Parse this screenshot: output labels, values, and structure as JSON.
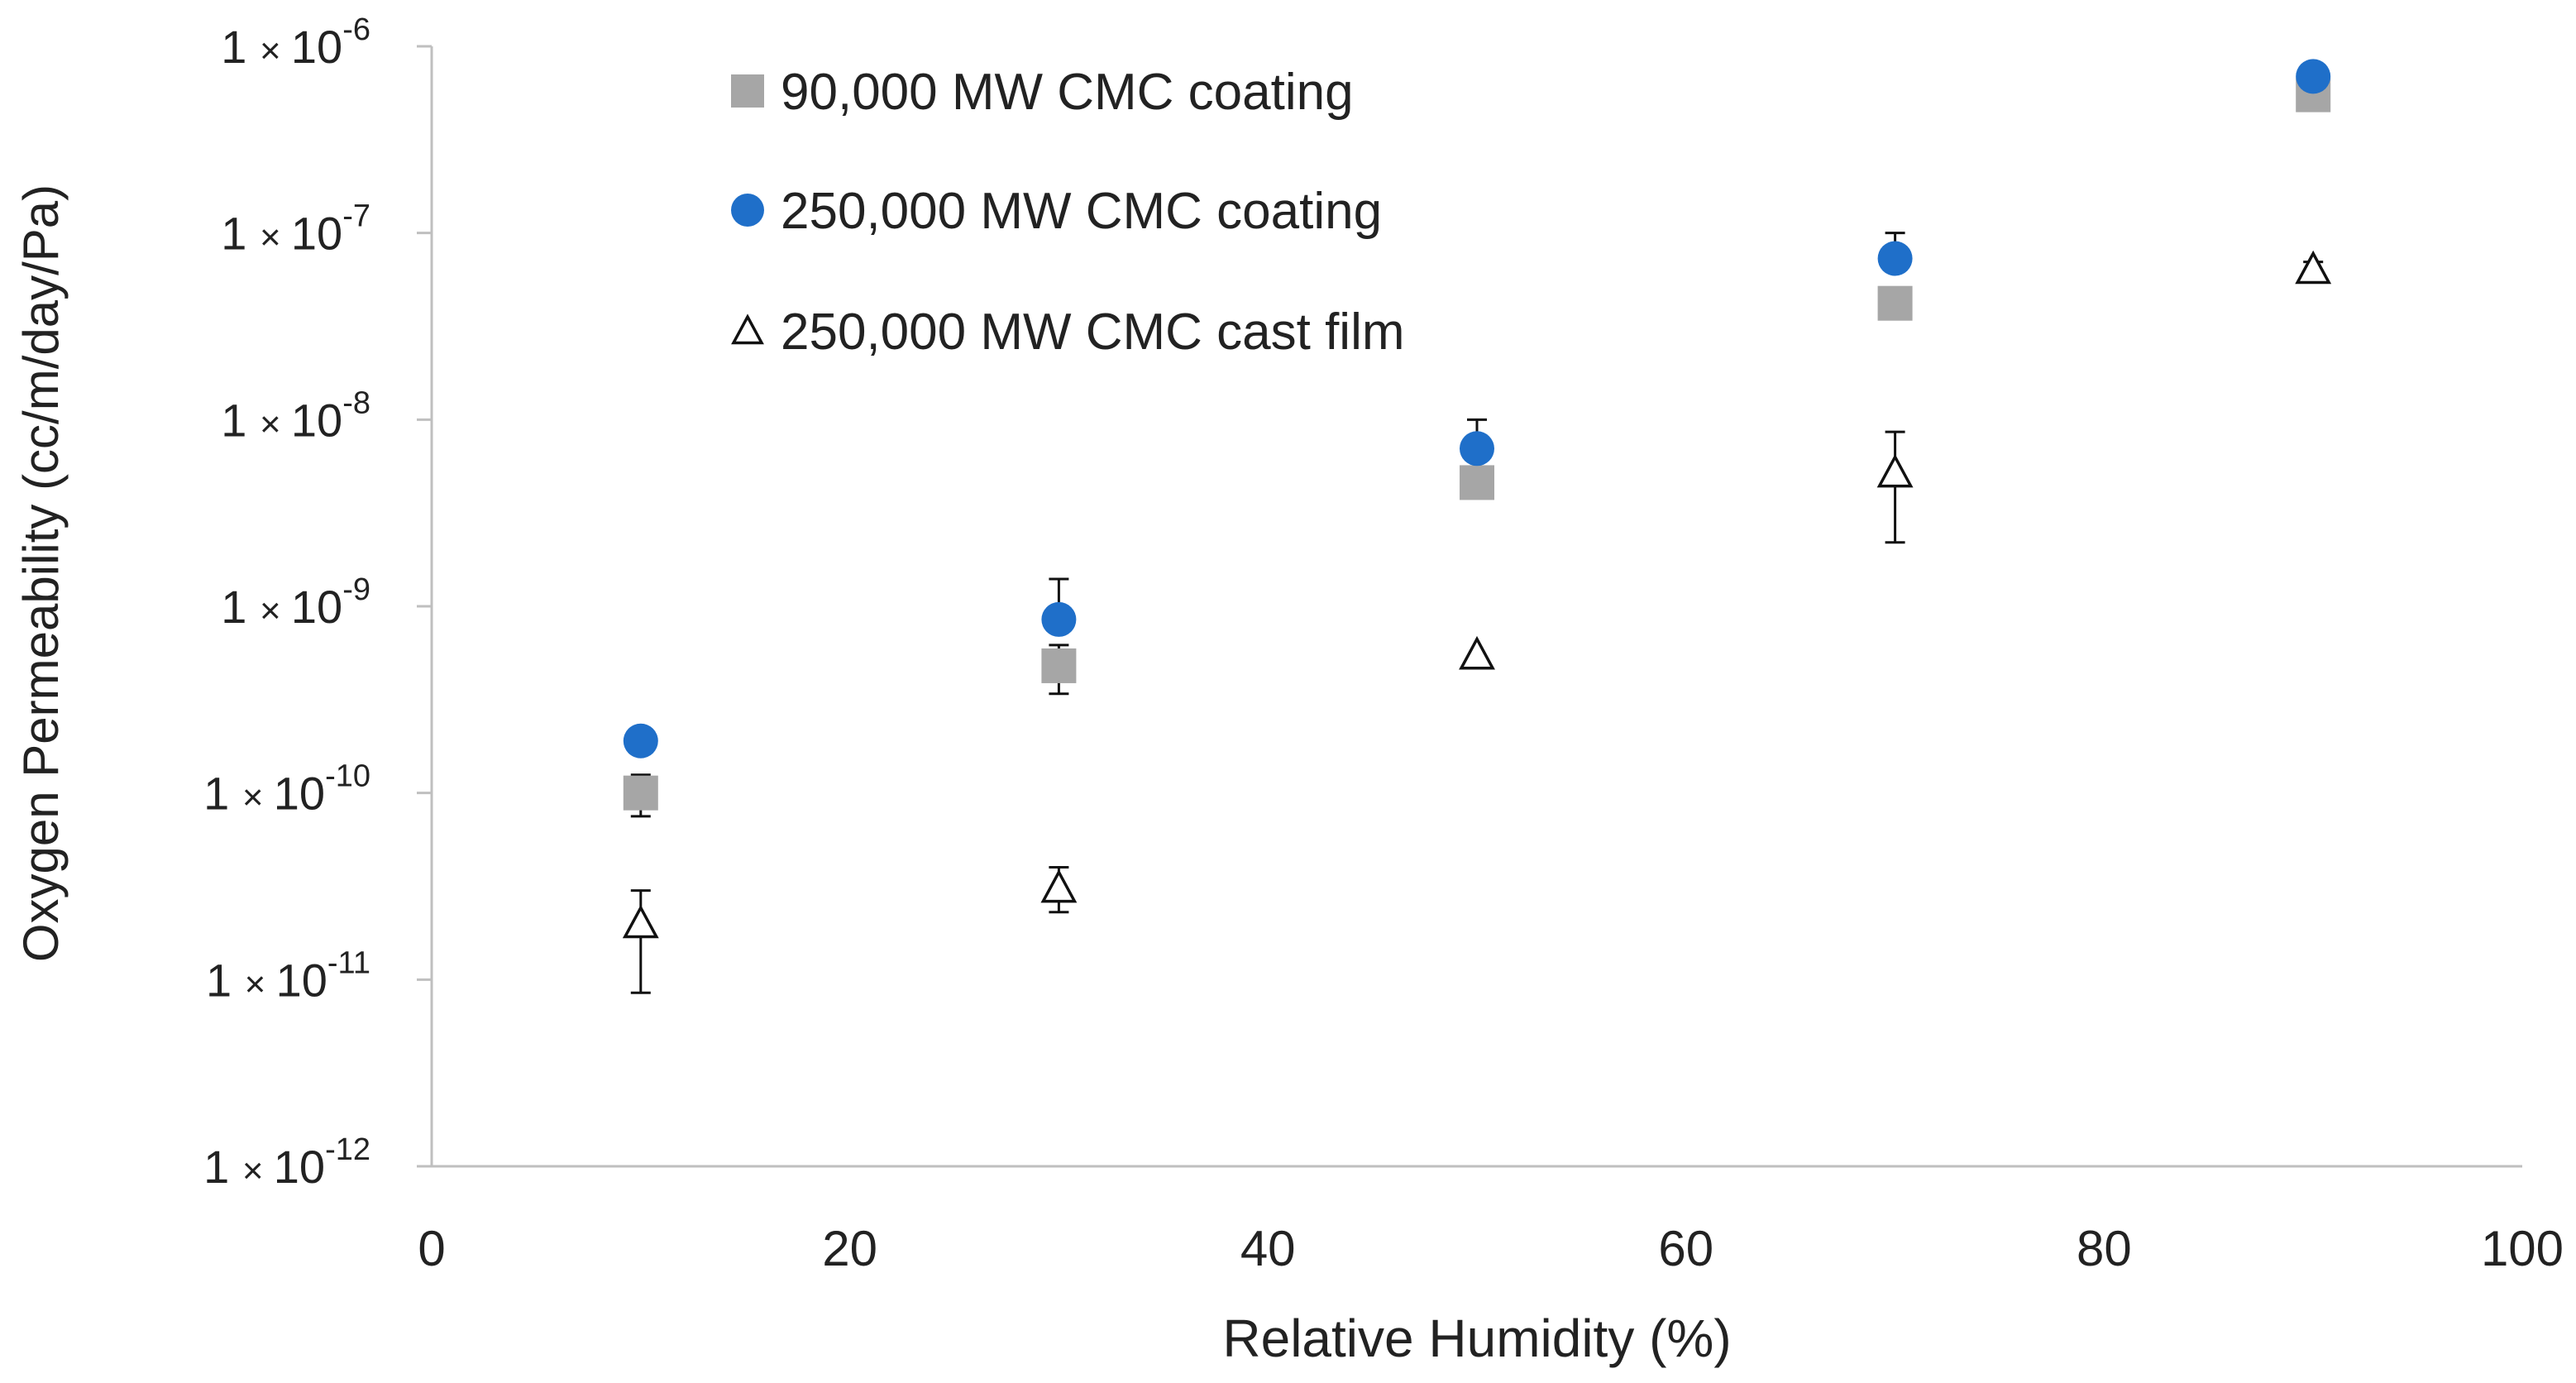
{
  "chart_data": {
    "type": "scatter",
    "title": "",
    "xlabel": "Relative Humidity (%)",
    "ylabel": "Oxygen Permeability (cc/m/day/Pa)",
    "xlim": [
      0,
      100
    ],
    "ylim": [
      1e-12,
      1e-06
    ],
    "yscale": "log",
    "grid": false,
    "legend_position": "top-left",
    "x_ticks": [
      0,
      20,
      40,
      60,
      80,
      100
    ],
    "x_tick_labels": [
      "0",
      "20",
      "40",
      "60",
      "80",
      "100"
    ],
    "y_ticks": [
      {
        "mantissa": "1",
        "op": "×",
        "base": "10",
        "exp": "-6"
      },
      {
        "mantissa": "1",
        "op": "×",
        "base": "10",
        "exp": "-7"
      },
      {
        "mantissa": "1",
        "op": "×",
        "base": "10",
        "exp": "-8"
      },
      {
        "mantissa": "1",
        "op": "×",
        "base": "10",
        "exp": "-9"
      },
      {
        "mantissa": "1",
        "op": "×",
        "base": "10",
        "exp": "-10"
      },
      {
        "mantissa": "1",
        "op": "×",
        "base": "10",
        "exp": "-11"
      },
      {
        "mantissa": "1",
        "op": "×",
        "base": "10",
        "exp": "-12"
      }
    ],
    "series": [
      {
        "name": "90,000 MW CMC coating",
        "marker": "square",
        "color": "#a6a6a6",
        "x": [
          10,
          30,
          50,
          70,
          90
        ],
        "y": [
          1e-10,
          4.8e-10,
          4.6e-09,
          4.2e-08,
          5.5e-07
        ],
        "err_low": [
          7.5e-11,
          3.4e-10,
          null,
          null,
          null
        ],
        "err_high": [
          1.25e-10,
          6.2e-10,
          null,
          null,
          null
        ]
      },
      {
        "name": "250,000 MW CMC coating",
        "marker": "circle",
        "color": "#1f6fc9",
        "x": [
          10,
          30,
          50,
          70,
          90
        ],
        "y": [
          1.9e-10,
          8.5e-10,
          7e-09,
          7.3e-08,
          6.9e-07
        ],
        "err_low": [
          null,
          null,
          null,
          null,
          null
        ],
        "err_high": [
          null,
          1.4e-09,
          1e-08,
          1e-07,
          null
        ]
      },
      {
        "name": "250,000 MW CMC cast film",
        "marker": "triangle-open",
        "color": "#111111",
        "x": [
          10,
          30,
          50,
          70,
          90
        ],
        "y": [
          2e-11,
          3.1e-11,
          5.5e-10,
          5.2e-09,
          6.4e-08
        ],
        "err_low": [
          8.5e-12,
          2.3e-11,
          null,
          2.2e-09,
          5.9e-08
        ],
        "err_high": [
          3e-11,
          4e-11,
          null,
          8.6e-09,
          7e-08
        ]
      }
    ]
  }
}
